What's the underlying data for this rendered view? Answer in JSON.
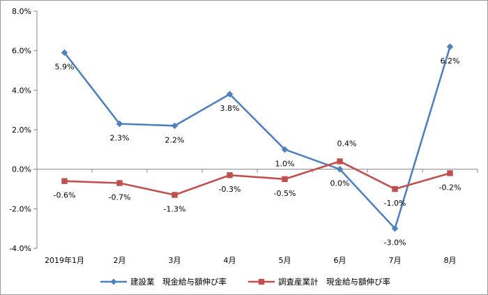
{
  "chart_data": {
    "type": "line",
    "categories": [
      "2019年1月",
      "2月",
      "3月",
      "4月",
      "5月",
      "6月",
      "7月",
      "8月"
    ],
    "series": [
      {
        "name": "建設業　現金給与額伸び率",
        "values": [
          5.9,
          2.3,
          2.2,
          3.8,
          1.0,
          0.0,
          -3.0,
          6.2
        ],
        "labels": [
          "5.9%",
          "2.3%",
          "2.2%",
          "3.8%",
          "1.0%",
          "0.0%",
          "-3.0%",
          "6.2%"
        ],
        "color": "#4f81bd",
        "marker": "diamond"
      },
      {
        "name": "調査産業計　現金給与額伸び率",
        "values": [
          -0.6,
          -0.7,
          -1.3,
          -0.3,
          -0.5,
          0.4,
          -1.0,
          -0.2
        ],
        "labels": [
          "-0.6%",
          "-0.7%",
          "-1.3%",
          "-0.3%",
          "-0.5%",
          "0.4%",
          "-1.0%",
          "-0.2%"
        ],
        "color": "#c0504d",
        "marker": "square"
      }
    ],
    "yticks": [
      "8.0%",
      "6.0%",
      "4.0%",
      "2.0%",
      "0.0%",
      "-2.0%",
      "-4.0%"
    ],
    "ytick_values": [
      8,
      6,
      4,
      2,
      0,
      -2,
      -4
    ],
    "ylim": [
      -4,
      8
    ],
    "title": "",
    "xlabel": "",
    "ylabel": "",
    "grid": false,
    "legend": "bottom",
    "axis_color": "#868686"
  }
}
